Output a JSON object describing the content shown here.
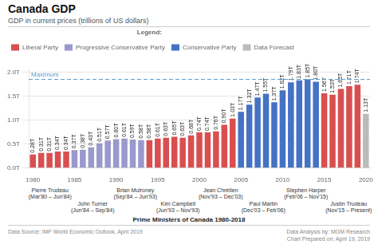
{
  "chart_data": {
    "type": "bar",
    "title": "Canada GDP",
    "subtitle": "GDP in current prices (trillions of US dollars)",
    "categories": [
      "1980",
      null,
      null,
      null,
      null,
      "1985",
      null,
      null,
      null,
      null,
      "1990",
      null,
      null,
      null,
      null,
      "1995",
      null,
      null,
      null,
      null,
      "2000",
      null,
      null,
      null,
      null,
      "2005",
      null,
      null,
      null,
      null,
      "2010",
      null,
      null,
      null,
      null,
      "2015",
      null,
      null,
      null,
      null,
      "2020"
    ],
    "series": [
      {
        "name": "Liberal Party",
        "color": "#d94f4f",
        "values": [
          0.28,
          0.31,
          0.31,
          0.34,
          0.34,
          null,
          null,
          null,
          null,
          null,
          null,
          null,
          null,
          null,
          0.58,
          0.61,
          0.63,
          0.65,
          0.63,
          0.68,
          0.74,
          0.74,
          0.76,
          0.9,
          1.03,
          null,
          null,
          null,
          null,
          null,
          null,
          null,
          null,
          null,
          null,
          1.56,
          1.53,
          1.65,
          1.71,
          1.74,
          null
        ],
        "value_labels": [
          "0.28T",
          "0.31T",
          "0.31T",
          "0.34T",
          "0.34T",
          null,
          null,
          null,
          null,
          null,
          null,
          null,
          null,
          null,
          "0.58T",
          "0.61T",
          "0.63T",
          "0.65T",
          "0.63T",
          "0.68T",
          "0.74T",
          "0.74T",
          "0.76T",
          "0.90T",
          "1.03T",
          null,
          null,
          null,
          null,
          null,
          null,
          null,
          null,
          null,
          null,
          "1.56T",
          "1.53T",
          "1.65T",
          "1.71T",
          "1.74T",
          null
        ]
      },
      {
        "name": "Progressive Conservative Party",
        "color": "#9999cc",
        "values": [
          null,
          null,
          null,
          null,
          null,
          0.37,
          0.38,
          0.43,
          0.51,
          0.57,
          0.6,
          0.61,
          0.59,
          0.58,
          null,
          null,
          null,
          null,
          null,
          null,
          null,
          null,
          null,
          null,
          null,
          null,
          null,
          null,
          null,
          null,
          null,
          null,
          null,
          null,
          null,
          null,
          null,
          null,
          null,
          null,
          null
        ],
        "value_labels": [
          null,
          null,
          null,
          null,
          null,
          "0.37T",
          "0.38T",
          "0.43T",
          "0.51T",
          "0.57T",
          "0.60T",
          "0.61T",
          "0.59T",
          "0.58T",
          null,
          null,
          null,
          null,
          null,
          null,
          null,
          null,
          null,
          null,
          null,
          null,
          null,
          null,
          null,
          null,
          null,
          null,
          null,
          null,
          null,
          null,
          null,
          null,
          null,
          null,
          null
        ]
      },
      {
        "name": "Conservative Party",
        "color": "#4472c4",
        "values": [
          null,
          null,
          null,
          null,
          null,
          null,
          null,
          null,
          null,
          null,
          null,
          null,
          null,
          null,
          null,
          null,
          null,
          null,
          null,
          null,
          null,
          null,
          null,
          null,
          null,
          1.17,
          1.32,
          1.47,
          1.55,
          1.37,
          1.62,
          1.79,
          1.83,
          1.85,
          1.8,
          null,
          null,
          null,
          null,
          null,
          null
        ],
        "value_labels": [
          null,
          null,
          null,
          null,
          null,
          null,
          null,
          null,
          null,
          null,
          null,
          null,
          null,
          null,
          null,
          null,
          null,
          null,
          null,
          null,
          null,
          null,
          null,
          null,
          null,
          "1.17T",
          "1.32T",
          "1.47T",
          "1.55T",
          "1.37T",
          "1.62T",
          "1.79T",
          "1.83T",
          "1.85T",
          "1.80T",
          null,
          null,
          null,
          null,
          null,
          null
        ]
      },
      {
        "name": "Data Forecast",
        "color": "#bbbbbb",
        "values": [
          null,
          null,
          null,
          null,
          null,
          null,
          null,
          null,
          null,
          null,
          null,
          null,
          null,
          null,
          null,
          null,
          null,
          null,
          null,
          null,
          null,
          null,
          null,
          null,
          null,
          null,
          null,
          null,
          null,
          null,
          null,
          null,
          null,
          null,
          null,
          null,
          null,
          null,
          null,
          null,
          1.13
        ],
        "value_labels": [
          null,
          null,
          null,
          null,
          null,
          null,
          null,
          null,
          null,
          null,
          null,
          null,
          null,
          null,
          null,
          null,
          null,
          null,
          null,
          null,
          null,
          null,
          null,
          null,
          null,
          null,
          null,
          null,
          null,
          null,
          null,
          null,
          null,
          null,
          null,
          null,
          null,
          null,
          null,
          null,
          "1.13T"
        ]
      }
    ],
    "ylim": [
      0,
      2.05
    ],
    "yticks": [
      {
        "value": 0.0,
        "label": "0.0T"
      },
      {
        "value": 0.5,
        "label": "0.5T"
      },
      {
        "value": 1.0,
        "label": "1.0T"
      },
      {
        "value": 1.5,
        "label": "1.5T"
      },
      {
        "value": 2.0,
        "label": "2.0T"
      }
    ],
    "grid": true,
    "data_labels": true,
    "legend": "upper left",
    "legend_title": "Legend:",
    "annotations": [
      {
        "label": "Maximum",
        "y": 1.85,
        "line_style": "dashed"
      }
    ],
    "prime_ministers": {
      "title": "Prime Ministers of Canada 1980-2018",
      "items": [
        {
          "name": "Pierre Trudeau",
          "dates": "(Mar'80 – Jun'84)"
        },
        {
          "name": "John Turner",
          "dates": "(Jun'84 – Sep'84)"
        },
        {
          "name": "Brian Mulroney",
          "dates": "(Sep'84 – Jun'93)"
        },
        {
          "name": "Kim Campbell",
          "dates": "(Jun'93 – Nov'93)"
        },
        {
          "name": "Jean Chrétien",
          "dates": "(Nov'93 – Dec'03)"
        },
        {
          "name": "Paul Martin",
          "dates": "(Dec'03 – Feb'06)"
        },
        {
          "name": "Stephen Harper",
          "dates": "(Feb'06 – Nov'15)"
        },
        {
          "name": "Justin Trudeau",
          "dates": "(Nov'15 – Present)"
        }
      ]
    },
    "footer": [
      "Data Source: IMF World Economic Outlook, April 2019",
      "Data Analysis by: MGM Research",
      "Chart Prepared on: April 19, 2019"
    ]
  }
}
